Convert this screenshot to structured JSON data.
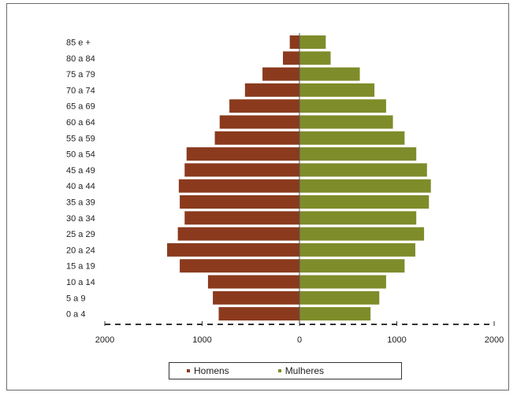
{
  "chart_data": {
    "type": "bar",
    "orientation": "horizontal",
    "subtype": "population-pyramid",
    "title": "",
    "xlabel": "",
    "ylabel": "",
    "categories": [
      "0 a 4",
      "5 a 9",
      "10 a 14",
      "15 a 19",
      "20 a 24",
      "25 a 29",
      "30 a 34",
      "35 a 39",
      "40 a 44",
      "45 a 49",
      "50 a 54",
      "55 a 59",
      "60 a 64",
      "65 a 69",
      "70 a 74",
      "75 a 79",
      "80 a 84",
      "85 e +"
    ],
    "series": [
      {
        "name": "Homens",
        "color": "#8b3a1e",
        "side": "left",
        "values": [
          830,
          890,
          940,
          1230,
          1360,
          1250,
          1180,
          1230,
          1240,
          1180,
          1160,
          870,
          820,
          720,
          560,
          380,
          170,
          100
        ]
      },
      {
        "name": "Mulheres",
        "color": "#7f8c2a",
        "side": "right",
        "values": [
          730,
          820,
          890,
          1080,
          1190,
          1280,
          1200,
          1330,
          1350,
          1310,
          1200,
          1080,
          960,
          890,
          770,
          620,
          320,
          270
        ]
      }
    ],
    "xticks": [
      "2000",
      "1000",
      "0",
      "1000",
      "2000"
    ],
    "xlim": [
      -2000,
      2000
    ],
    "grid": false,
    "legend_position": "bottom"
  }
}
